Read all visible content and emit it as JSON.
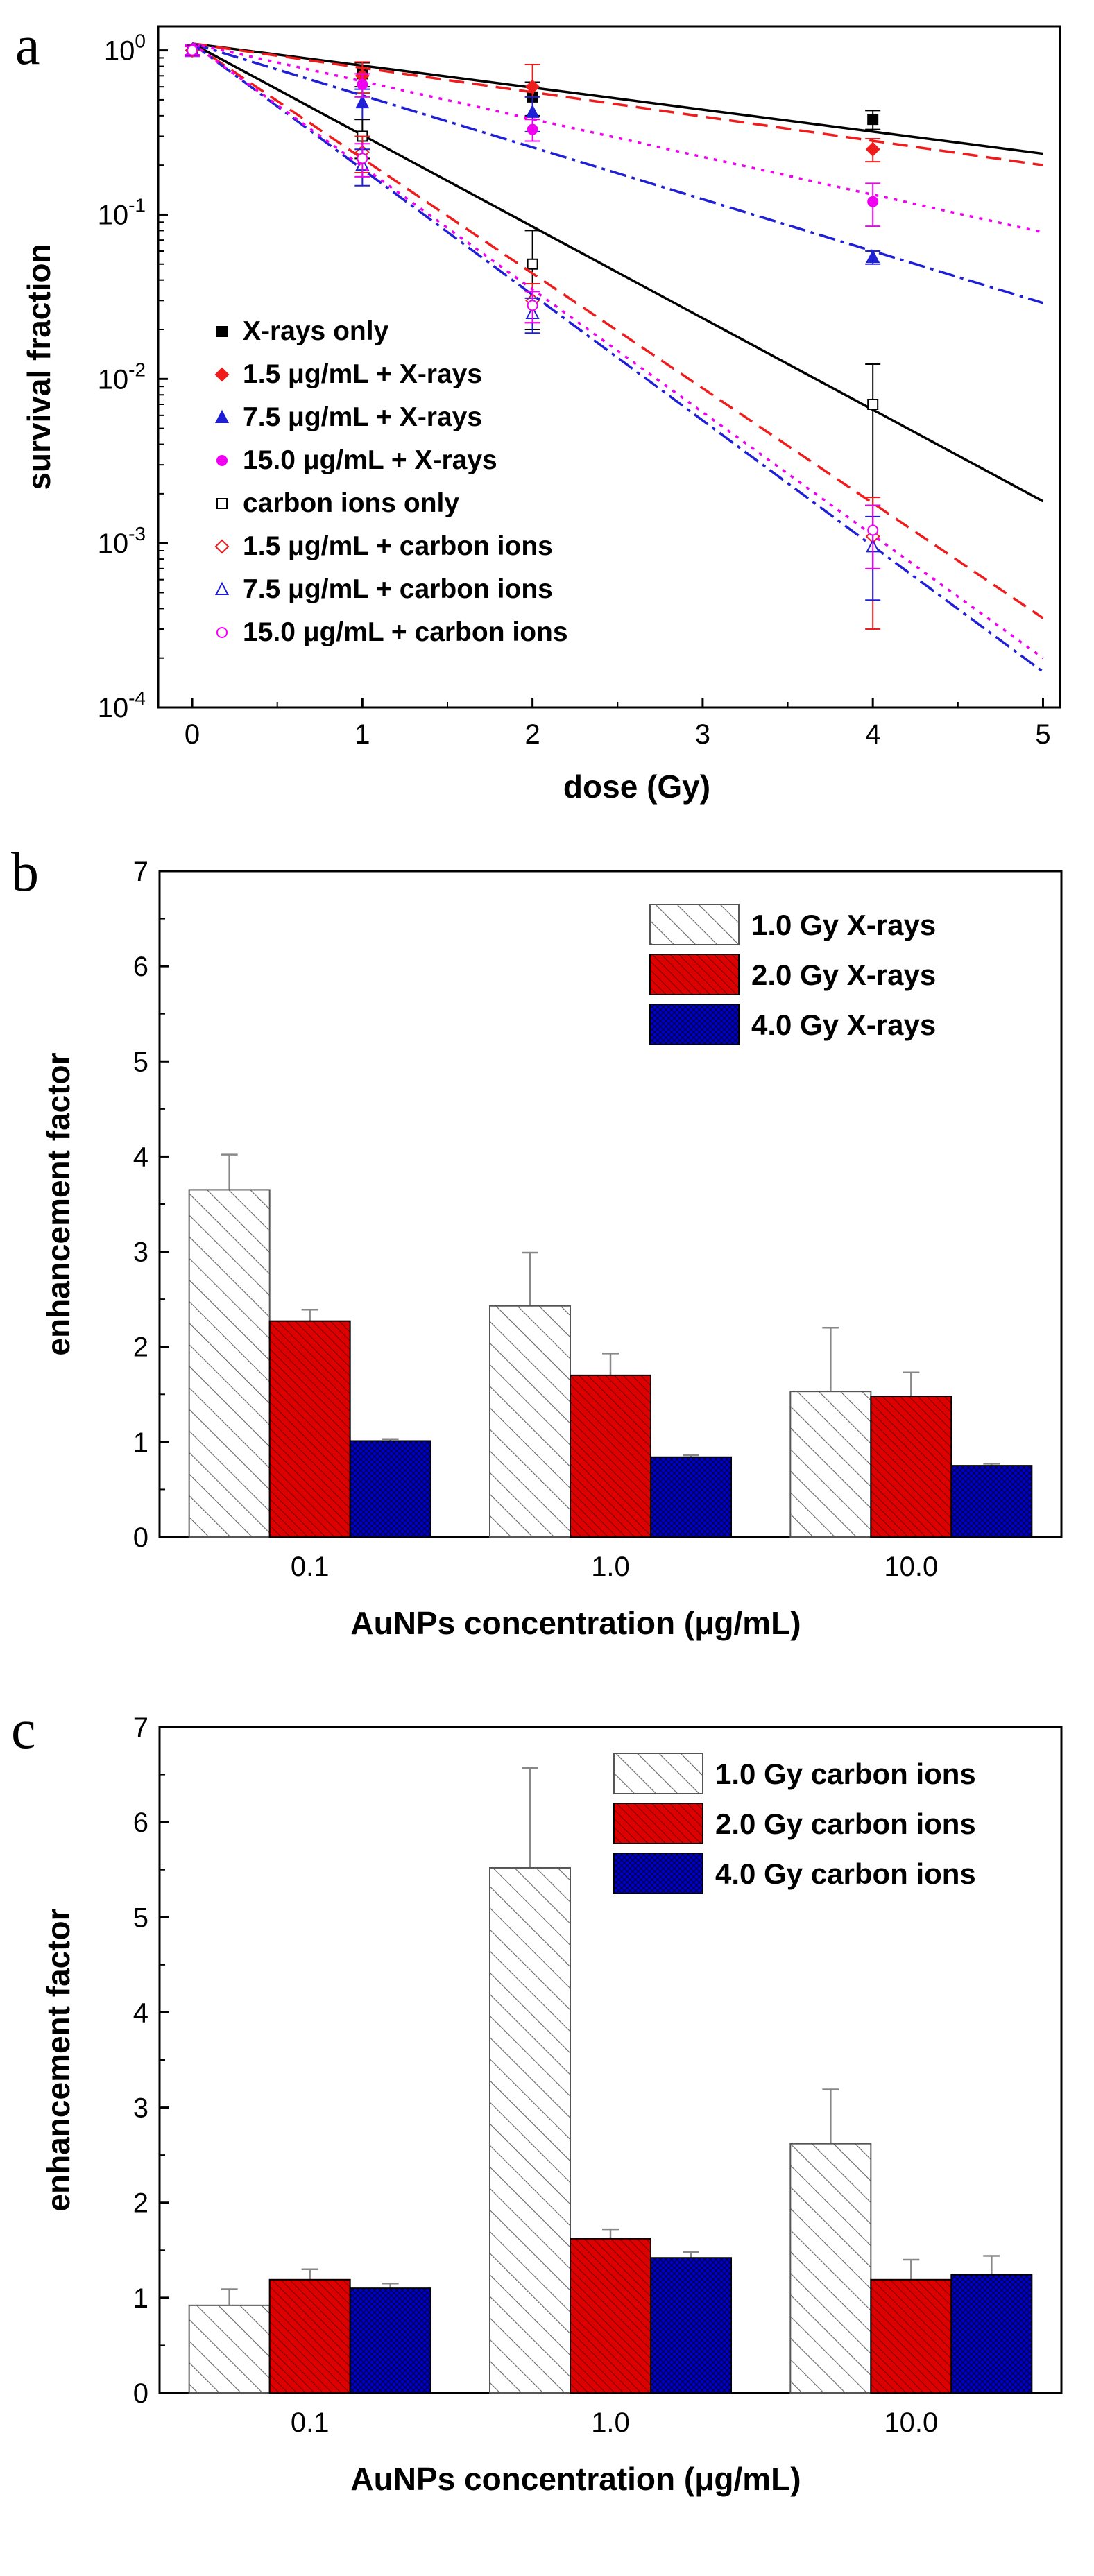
{
  "panels": {
    "a": "a",
    "b": "b",
    "c": "c"
  },
  "colors": {
    "black": "#000000",
    "red": "#ee1c1c",
    "blue": "#1f1fd6",
    "magenta": "#f000f0",
    "bar_red": "#dd0000",
    "bar_blue": "#0000cc"
  },
  "chart_data": [
    {
      "type": "scatter",
      "panel": "a",
      "xlabel": "dose (Gy)",
      "ylabel": "survival fraction",
      "xlim": [
        -0.2,
        5.1
      ],
      "ylim": [
        0.0001,
        1.4
      ],
      "yscale": "log",
      "xticks": [
        "0",
        "1",
        "2",
        "3",
        "4",
        "5"
      ],
      "yticks": [
        {
          "value": 0.0001,
          "base": "10",
          "exp": "-4"
        },
        {
          "value": 0.001,
          "base": "10",
          "exp": "-3"
        },
        {
          "value": 0.01,
          "base": "10",
          "exp": "-2"
        },
        {
          "value": 0.1,
          "base": "10",
          "exp": "-1"
        },
        {
          "value": 1,
          "base": "10",
          "exp": "0"
        }
      ],
      "legend_position": "lower-left",
      "series": [
        {
          "name": "X-rays only",
          "marker": "square-filled",
          "color": "#000000",
          "line": "solid",
          "x": [
            0,
            1,
            2,
            4
          ],
          "y": [
            1.0,
            0.72,
            0.52,
            0.38
          ],
          "err": [
            0.06,
            0.12,
            0.12,
            0.05
          ],
          "fit": {
            "x": [
              0,
              5
            ],
            "y": [
              1.1,
              0.235
            ]
          }
        },
        {
          "name": "1.5 μg/mL + X-rays",
          "marker": "diamond-filled",
          "color": "#ee1c1c",
          "line": "dashed",
          "x": [
            0,
            1,
            2,
            4
          ],
          "y": [
            1.0,
            0.7,
            0.6,
            0.25
          ],
          "err": [
            0.08,
            0.15,
            0.22,
            0.04
          ],
          "fit": {
            "x": [
              0,
              5
            ],
            "y": [
              1.1,
              0.2
            ]
          }
        },
        {
          "name": "7.5 μg/mL + X-rays",
          "marker": "triangle-filled",
          "color": "#1f1fd6",
          "line": "dashdot",
          "x": [
            0,
            1,
            2,
            4
          ],
          "y": [
            1.0,
            0.48,
            0.42,
            0.055
          ],
          "err": [
            0.08,
            0.1,
            0.1,
            0.005
          ],
          "fit": {
            "x": [
              0,
              5
            ],
            "y": [
              1.1,
              0.029
            ]
          }
        },
        {
          "name": "15.0 μg/mL + X-rays",
          "marker": "circle-filled",
          "color": "#f000f0",
          "line": "dotted",
          "x": [
            0,
            1,
            2,
            4
          ],
          "y": [
            1.0,
            0.62,
            0.33,
            0.12
          ],
          "err": [
            0.08,
            0.1,
            0.05,
            0.035
          ],
          "fit": {
            "x": [
              0,
              5
            ],
            "y": [
              1.1,
              0.078
            ]
          }
        },
        {
          "name": "carbon ions only",
          "marker": "square-open",
          "color": "#000000",
          "line": "solid",
          "x": [
            0,
            1,
            2,
            4
          ],
          "y": [
            1.0,
            0.3,
            0.05,
            0.007
          ],
          "err": [
            0.06,
            0.08,
            0.03,
            0.0053
          ],
          "fit": {
            "x": [
              0,
              5
            ],
            "y": [
              1.1,
              0.0018
            ]
          }
        },
        {
          "name": "1.5 μg/mL + carbon ions",
          "marker": "diamond-open",
          "color": "#ee1c1c",
          "line": "dashed",
          "x": [
            0,
            1,
            2,
            4
          ],
          "y": [
            1.0,
            0.24,
            0.03,
            0.0011
          ],
          "err": [
            0.06,
            0.06,
            0.008,
            0.0008
          ],
          "fit": {
            "x": [
              0,
              5
            ],
            "y": [
              1.1,
              0.00035
            ]
          }
        },
        {
          "name": "7.5 μg/mL + carbon ions",
          "marker": "triangle-open",
          "color": "#1f1fd6",
          "line": "dashdot",
          "x": [
            0,
            1,
            2,
            4
          ],
          "y": [
            1.0,
            0.2,
            0.025,
            0.00095
          ],
          "err": [
            0.06,
            0.05,
            0.006,
            0.0005
          ],
          "fit": {
            "x": [
              0,
              5
            ],
            "y": [
              1.1,
              0.000165
            ]
          }
        },
        {
          "name": "15.0 μg/mL + carbon ions",
          "marker": "circle-open",
          "color": "#f000f0",
          "line": "dotted",
          "x": [
            0,
            1,
            2,
            4
          ],
          "y": [
            1.0,
            0.22,
            0.028,
            0.0012
          ],
          "err": [
            0.06,
            0.05,
            0.006,
            0.0005
          ],
          "fit": {
            "x": [
              0,
              5
            ],
            "y": [
              1.1,
              0.0002
            ]
          }
        }
      ]
    },
    {
      "type": "bar",
      "panel": "b",
      "xlabel": "AuNPs concentration (μg/mL)",
      "ylabel": "enhancement factor",
      "ylim": [
        0,
        7
      ],
      "yticks": [
        "0",
        "1",
        "2",
        "3",
        "4",
        "5",
        "6",
        "7"
      ],
      "categories": [
        "0.1",
        "1.0",
        "10.0"
      ],
      "legend_position": "top-right",
      "series": [
        {
          "name": "1.0 Gy X-rays",
          "pattern": "hatch",
          "values": [
            3.65,
            2.43,
            1.53
          ],
          "err": [
            0.37,
            0.56,
            0.67
          ]
        },
        {
          "name": "2.0 Gy X-rays",
          "pattern": "red",
          "values": [
            2.27,
            1.7,
            1.48
          ],
          "err": [
            0.12,
            0.23,
            0.25
          ]
        },
        {
          "name": "4.0 Gy X-rays",
          "pattern": "blue",
          "values": [
            1.01,
            0.84,
            0.75
          ],
          "err": [
            0.02,
            0.02,
            0.02
          ]
        }
      ]
    },
    {
      "type": "bar",
      "panel": "c",
      "xlabel": "AuNPs concentration (μg/mL)",
      "ylabel": "enhancement factor",
      "ylim": [
        0,
        7
      ],
      "yticks": [
        "0",
        "1",
        "2",
        "3",
        "4",
        "5",
        "6",
        "7"
      ],
      "categories": [
        "0.1",
        "1.0",
        "10.0"
      ],
      "legend_position": "top-right",
      "series": [
        {
          "name": "1.0 Gy carbon ions",
          "pattern": "hatch",
          "values": [
            0.92,
            5.52,
            2.62
          ],
          "err": [
            0.17,
            1.05,
            0.57
          ]
        },
        {
          "name": "2.0 Gy carbon ions",
          "pattern": "red",
          "values": [
            1.19,
            1.62,
            1.19
          ],
          "err": [
            0.11,
            0.1,
            0.21
          ]
        },
        {
          "name": "4.0 Gy carbon ions",
          "pattern": "blue",
          "values": [
            1.1,
            1.42,
            1.24
          ],
          "err": [
            0.05,
            0.06,
            0.2
          ]
        }
      ]
    }
  ]
}
